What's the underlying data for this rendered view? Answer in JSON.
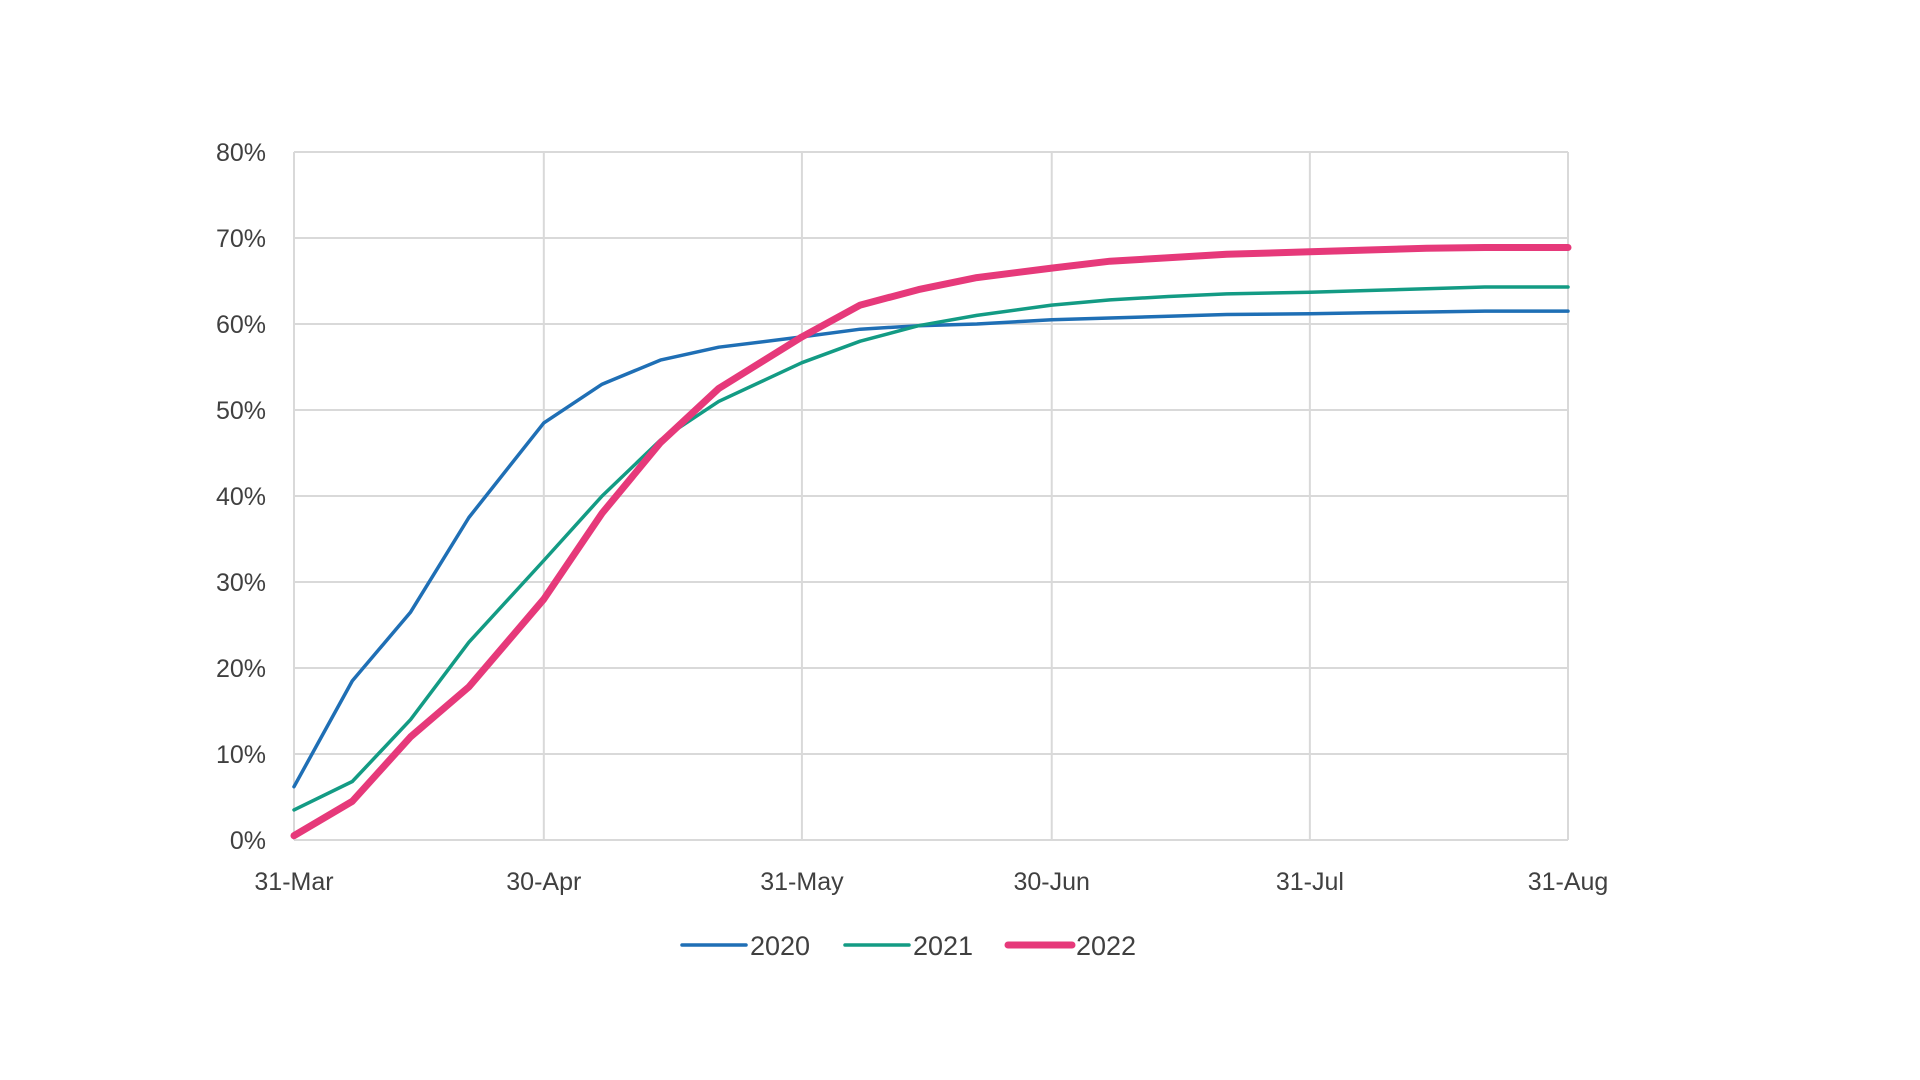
{
  "chart_data": {
    "type": "line",
    "title": "",
    "xlabel": "",
    "ylabel": "",
    "y_tick_labels": [
      "0%",
      "10%",
      "20%",
      "30%",
      "40%",
      "50%",
      "60%",
      "70%",
      "80%"
    ],
    "x_tick_labels": [
      "31-Mar",
      "30-Apr",
      "31-May",
      "30-Jun",
      "31-Jul",
      "31-Aug"
    ],
    "x_tick_dates": [
      "2022-03-31",
      "2022-04-30",
      "2022-05-31",
      "2022-06-30",
      "2022-07-31",
      "2022-08-31"
    ],
    "xlim": [
      "2022-03-31",
      "2022-08-31"
    ],
    "ylim": [
      0,
      80
    ],
    "grid": true,
    "legend_position": "bottom",
    "series": [
      {
        "name": "2020",
        "color": "#1f6fb5",
        "x": [
          "2022-03-31",
          "2022-04-07",
          "2022-04-14",
          "2022-04-21",
          "2022-04-30",
          "2022-05-07",
          "2022-05-14",
          "2022-05-21",
          "2022-05-31",
          "2022-06-07",
          "2022-06-14",
          "2022-06-21",
          "2022-06-30",
          "2022-07-07",
          "2022-07-14",
          "2022-07-21",
          "2022-07-31",
          "2022-08-07",
          "2022-08-14",
          "2022-08-21",
          "2022-08-31"
        ],
        "values": [
          6.2,
          18.5,
          26.5,
          37.5,
          48.5,
          53.0,
          55.8,
          57.3,
          58.5,
          59.4,
          59.8,
          60.0,
          60.5,
          60.7,
          60.9,
          61.1,
          61.2,
          61.3,
          61.4,
          61.5,
          61.5
        ]
      },
      {
        "name": "2021",
        "color": "#139b84",
        "x": [
          "2022-03-31",
          "2022-04-07",
          "2022-04-14",
          "2022-04-21",
          "2022-04-30",
          "2022-05-07",
          "2022-05-14",
          "2022-05-21",
          "2022-05-31",
          "2022-06-07",
          "2022-06-14",
          "2022-06-21",
          "2022-06-30",
          "2022-07-07",
          "2022-07-14",
          "2022-07-21",
          "2022-07-31",
          "2022-08-07",
          "2022-08-14",
          "2022-08-21",
          "2022-08-31"
        ],
        "values": [
          3.5,
          6.8,
          14.0,
          23.0,
          32.5,
          40.0,
          46.5,
          51.0,
          55.5,
          58.0,
          59.8,
          61.0,
          62.2,
          62.8,
          63.2,
          63.5,
          63.7,
          63.9,
          64.1,
          64.3,
          64.3
        ]
      },
      {
        "name": "2022",
        "color": "#e6397a",
        "x": [
          "2022-03-31",
          "2022-04-07",
          "2022-04-14",
          "2022-04-21",
          "2022-04-30",
          "2022-05-07",
          "2022-05-14",
          "2022-05-21",
          "2022-05-31",
          "2022-06-07",
          "2022-06-14",
          "2022-06-21",
          "2022-06-30",
          "2022-07-07",
          "2022-07-14",
          "2022-07-21",
          "2022-07-31",
          "2022-08-07",
          "2022-08-14",
          "2022-08-21",
          "2022-08-31"
        ],
        "values": [
          0.5,
          4.5,
          12.0,
          17.8,
          28.0,
          38.0,
          46.2,
          52.5,
          58.5,
          62.2,
          64.0,
          65.4,
          66.5,
          67.3,
          67.7,
          68.1,
          68.4,
          68.6,
          68.8,
          68.9,
          68.9
        ]
      }
    ]
  }
}
